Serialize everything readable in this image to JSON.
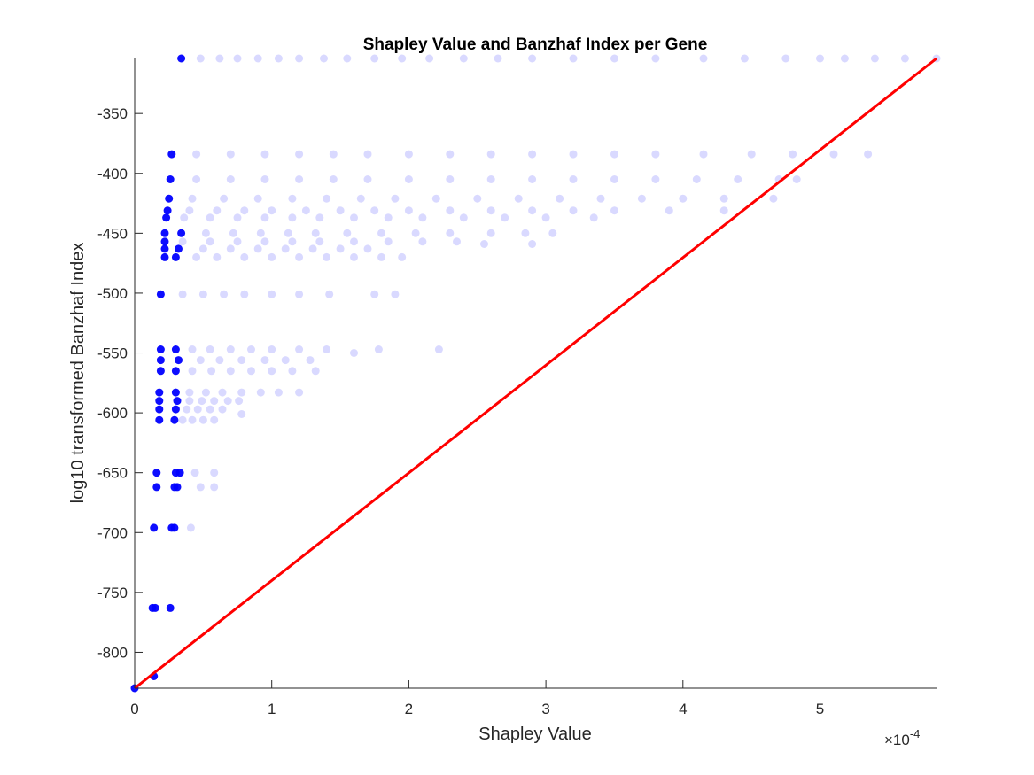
{
  "chart_data": {
    "type": "scatter",
    "title": "Shapley Value and Banzhaf Index per Gene",
    "xlabel": "Shapley Value",
    "ylabel": "log10 transformed Banzhaf Index",
    "x_exponent_label": "×10",
    "x_exponent_power": "-4",
    "x_scale_factor": 0.0001,
    "xlim": [
      0,
      5.85
    ],
    "ylim": [
      -830,
      -304
    ],
    "x_ticks": [
      0,
      1,
      2,
      3,
      4,
      5
    ],
    "x_tick_labels": [
      "0",
      "1",
      "2",
      "3",
      "4",
      "5"
    ],
    "y_ticks": [
      -350,
      -400,
      -450,
      -500,
      -550,
      -600,
      -650,
      -700,
      -750,
      -800
    ],
    "y_tick_labels": [
      "-350",
      "-400",
      "-450",
      "-500",
      "-550",
      "-600",
      "-650",
      "-700",
      "-750",
      "-800"
    ],
    "grid": false,
    "marker_color": "#0000ff",
    "line_color": "#ff0000",
    "series": [
      {
        "type": "scatter",
        "points": [
          [
            0.0,
            -830
          ],
          [
            0.14,
            -820
          ],
          [
            0.13,
            -763
          ],
          [
            0.15,
            -763
          ],
          [
            0.26,
            -763
          ],
          [
            0.14,
            -696
          ],
          [
            0.27,
            -696
          ],
          [
            0.29,
            -696
          ],
          [
            0.41,
            -696
          ],
          [
            0.16,
            -662
          ],
          [
            0.29,
            -662
          ],
          [
            0.31,
            -662
          ],
          [
            0.48,
            -662
          ],
          [
            0.58,
            -662
          ],
          [
            0.16,
            -650
          ],
          [
            0.3,
            -650
          ],
          [
            0.33,
            -650
          ],
          [
            0.44,
            -650
          ],
          [
            0.58,
            -650
          ],
          [
            0.18,
            -606
          ],
          [
            0.29,
            -606
          ],
          [
            0.35,
            -606
          ],
          [
            0.42,
            -606
          ],
          [
            0.5,
            -606
          ],
          [
            0.58,
            -606
          ],
          [
            0.18,
            -597
          ],
          [
            0.3,
            -597
          ],
          [
            0.38,
            -597
          ],
          [
            0.46,
            -597
          ],
          [
            0.55,
            -597
          ],
          [
            0.64,
            -597
          ],
          [
            0.78,
            -601
          ],
          [
            0.18,
            -590
          ],
          [
            0.31,
            -590
          ],
          [
            0.4,
            -590
          ],
          [
            0.49,
            -590
          ],
          [
            0.58,
            -590
          ],
          [
            0.68,
            -590
          ],
          [
            0.76,
            -590
          ],
          [
            0.18,
            -583
          ],
          [
            0.3,
            -583
          ],
          [
            0.4,
            -583
          ],
          [
            0.52,
            -583
          ],
          [
            0.64,
            -583
          ],
          [
            0.78,
            -583
          ],
          [
            0.92,
            -583
          ],
          [
            1.05,
            -583
          ],
          [
            1.2,
            -583
          ],
          [
            0.19,
            -565
          ],
          [
            0.3,
            -565
          ],
          [
            0.42,
            -565
          ],
          [
            0.56,
            -565
          ],
          [
            0.7,
            -565
          ],
          [
            0.85,
            -565
          ],
          [
            1.0,
            -565
          ],
          [
            1.15,
            -565
          ],
          [
            1.32,
            -565
          ],
          [
            0.19,
            -556
          ],
          [
            0.32,
            -556
          ],
          [
            0.48,
            -556
          ],
          [
            0.62,
            -556
          ],
          [
            0.78,
            -556
          ],
          [
            0.95,
            -556
          ],
          [
            1.1,
            -556
          ],
          [
            1.28,
            -556
          ],
          [
            0.19,
            -547
          ],
          [
            0.3,
            -547
          ],
          [
            0.42,
            -547
          ],
          [
            0.55,
            -547
          ],
          [
            0.7,
            -547
          ],
          [
            0.85,
            -547
          ],
          [
            1.0,
            -547
          ],
          [
            1.2,
            -547
          ],
          [
            1.4,
            -547
          ],
          [
            1.6,
            -550
          ],
          [
            1.78,
            -547
          ],
          [
            2.22,
            -547
          ],
          [
            0.19,
            -501
          ],
          [
            0.35,
            -501
          ],
          [
            0.5,
            -501
          ],
          [
            0.65,
            -501
          ],
          [
            0.8,
            -501
          ],
          [
            1.0,
            -501
          ],
          [
            1.2,
            -501
          ],
          [
            1.42,
            -501
          ],
          [
            1.75,
            -501
          ],
          [
            1.9,
            -501
          ],
          [
            0.22,
            -470
          ],
          [
            0.3,
            -470
          ],
          [
            0.45,
            -470
          ],
          [
            0.6,
            -470
          ],
          [
            0.8,
            -470
          ],
          [
            1.0,
            -470
          ],
          [
            1.2,
            -470
          ],
          [
            1.4,
            -470
          ],
          [
            1.6,
            -470
          ],
          [
            1.8,
            -470
          ],
          [
            1.95,
            -470
          ],
          [
            0.22,
            -463
          ],
          [
            0.32,
            -463
          ],
          [
            0.5,
            -463
          ],
          [
            0.7,
            -463
          ],
          [
            0.9,
            -463
          ],
          [
            1.1,
            -463
          ],
          [
            1.3,
            -463
          ],
          [
            1.5,
            -463
          ],
          [
            1.7,
            -463
          ],
          [
            0.22,
            -457
          ],
          [
            0.35,
            -457
          ],
          [
            0.55,
            -457
          ],
          [
            0.75,
            -457
          ],
          [
            0.95,
            -457
          ],
          [
            1.15,
            -457
          ],
          [
            1.35,
            -457
          ],
          [
            1.6,
            -457
          ],
          [
            1.85,
            -457
          ],
          [
            2.1,
            -457
          ],
          [
            2.35,
            -457
          ],
          [
            2.55,
            -459
          ],
          [
            2.9,
            -459
          ],
          [
            0.22,
            -450
          ],
          [
            0.34,
            -450
          ],
          [
            0.52,
            -450
          ],
          [
            0.72,
            -450
          ],
          [
            0.92,
            -450
          ],
          [
            1.12,
            -450
          ],
          [
            1.32,
            -450
          ],
          [
            1.55,
            -450
          ],
          [
            1.8,
            -450
          ],
          [
            2.05,
            -450
          ],
          [
            2.3,
            -450
          ],
          [
            2.6,
            -450
          ],
          [
            2.85,
            -450
          ],
          [
            3.05,
            -450
          ],
          [
            0.23,
            -437
          ],
          [
            0.36,
            -437
          ],
          [
            0.55,
            -437
          ],
          [
            0.75,
            -437
          ],
          [
            0.95,
            -437
          ],
          [
            1.15,
            -437
          ],
          [
            1.35,
            -437
          ],
          [
            1.6,
            -437
          ],
          [
            1.85,
            -437
          ],
          [
            2.1,
            -437
          ],
          [
            2.4,
            -437
          ],
          [
            2.7,
            -437
          ],
          [
            3.0,
            -437
          ],
          [
            3.35,
            -437
          ],
          [
            0.24,
            -431
          ],
          [
            0.4,
            -431
          ],
          [
            0.6,
            -431
          ],
          [
            0.8,
            -431
          ],
          [
            1.0,
            -431
          ],
          [
            1.25,
            -431
          ],
          [
            1.5,
            -431
          ],
          [
            1.75,
            -431
          ],
          [
            2.0,
            -431
          ],
          [
            2.3,
            -431
          ],
          [
            2.6,
            -431
          ],
          [
            2.9,
            -431
          ],
          [
            3.2,
            -431
          ],
          [
            3.5,
            -431
          ],
          [
            3.9,
            -431
          ],
          [
            4.3,
            -431
          ],
          [
            0.25,
            -421
          ],
          [
            0.42,
            -421
          ],
          [
            0.65,
            -421
          ],
          [
            0.9,
            -421
          ],
          [
            1.15,
            -421
          ],
          [
            1.4,
            -421
          ],
          [
            1.65,
            -421
          ],
          [
            1.9,
            -421
          ],
          [
            2.2,
            -421
          ],
          [
            2.5,
            -421
          ],
          [
            2.8,
            -421
          ],
          [
            3.1,
            -421
          ],
          [
            3.4,
            -421
          ],
          [
            3.7,
            -421
          ],
          [
            4.0,
            -421
          ],
          [
            4.3,
            -421
          ],
          [
            4.66,
            -421
          ],
          [
            0.26,
            -405
          ],
          [
            0.45,
            -405
          ],
          [
            0.7,
            -405
          ],
          [
            0.95,
            -405
          ],
          [
            1.2,
            -405
          ],
          [
            1.45,
            -405
          ],
          [
            1.7,
            -405
          ],
          [
            2.0,
            -405
          ],
          [
            2.3,
            -405
          ],
          [
            2.6,
            -405
          ],
          [
            2.9,
            -405
          ],
          [
            3.2,
            -405
          ],
          [
            3.5,
            -405
          ],
          [
            3.8,
            -405
          ],
          [
            4.1,
            -405
          ],
          [
            4.4,
            -405
          ],
          [
            4.7,
            -405
          ],
          [
            4.83,
            -405
          ],
          [
            0.27,
            -384
          ],
          [
            0.45,
            -384
          ],
          [
            0.7,
            -384
          ],
          [
            0.95,
            -384
          ],
          [
            1.2,
            -384
          ],
          [
            1.45,
            -384
          ],
          [
            1.7,
            -384
          ],
          [
            2.0,
            -384
          ],
          [
            2.3,
            -384
          ],
          [
            2.6,
            -384
          ],
          [
            2.9,
            -384
          ],
          [
            3.2,
            -384
          ],
          [
            3.5,
            -384
          ],
          [
            3.8,
            -384
          ],
          [
            4.15,
            -384
          ],
          [
            4.5,
            -384
          ],
          [
            4.8,
            -384
          ],
          [
            5.1,
            -384
          ],
          [
            5.35,
            -384
          ],
          [
            0.34,
            -304
          ],
          [
            0.48,
            -304
          ],
          [
            0.62,
            -304
          ],
          [
            0.75,
            -304
          ],
          [
            0.9,
            -304
          ],
          [
            1.05,
            -304
          ],
          [
            1.2,
            -304
          ],
          [
            1.38,
            -304
          ],
          [
            1.55,
            -304
          ],
          [
            1.75,
            -304
          ],
          [
            1.95,
            -304
          ],
          [
            2.15,
            -304
          ],
          [
            2.4,
            -304
          ],
          [
            2.65,
            -304
          ],
          [
            2.9,
            -304
          ],
          [
            3.2,
            -304
          ],
          [
            3.5,
            -304
          ],
          [
            3.8,
            -304
          ],
          [
            4.15,
            -304
          ],
          [
            4.45,
            -304
          ],
          [
            4.75,
            -304
          ],
          [
            5.0,
            -304
          ],
          [
            5.18,
            -304
          ],
          [
            5.4,
            -304
          ],
          [
            5.62,
            -304
          ],
          [
            5.85,
            -304
          ]
        ]
      },
      {
        "type": "line",
        "points": [
          [
            0,
            -830
          ],
          [
            5.85,
            -304
          ]
        ]
      }
    ]
  }
}
